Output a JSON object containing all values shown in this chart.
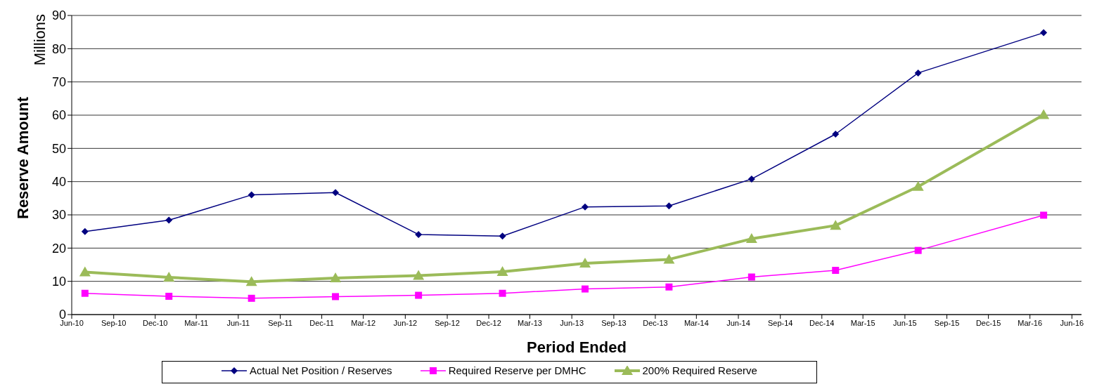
{
  "chart_data": {
    "type": "line",
    "xlabel": "Period Ended",
    "ylabel": "Reserve Amount",
    "annotations": [
      "Millions"
    ],
    "x": [
      "2010-06-30",
      "2010-12-31",
      "2011-06-30",
      "2011-12-31",
      "2012-06-30",
      "2012-12-31",
      "2013-06-30",
      "2013-12-31",
      "2014-06-30",
      "2014-12-31",
      "2015-06-30",
      "2016-03-31"
    ],
    "series": [
      {
        "name": "Actual Net Position / Reserves",
        "color": "#000080",
        "marker": "diamond",
        "values": [
          25,
          28.4,
          36,
          36.7,
          24.1,
          23.6,
          32.4,
          32.7,
          40.8,
          54.3,
          72.7,
          84.8
        ]
      },
      {
        "name": "Required Reserve per DMHC",
        "color": "#ff00ff",
        "marker": "square",
        "values": [
          6.4,
          5.5,
          4.9,
          5.4,
          5.8,
          6.4,
          7.7,
          8.3,
          11.3,
          13.3,
          19.3,
          29.9
        ]
      },
      {
        "name": "200% Required Reserve",
        "color": "#9bbb59",
        "marker": "triangle",
        "values": [
          12.8,
          11.2,
          9.9,
          11.0,
          11.7,
          12.9,
          15.4,
          16.6,
          22.8,
          26.8,
          38.5,
          60.1
        ]
      }
    ],
    "xlim": [
      "2010-06",
      "2016-06-22"
    ],
    "xticks": [
      {
        "value": "2010-06",
        "label": "Jun-10"
      },
      {
        "value": "2010-09",
        "label": "Sep-10"
      },
      {
        "value": "2010-12",
        "label": "Dec-10"
      },
      {
        "value": "2011-03",
        "label": "Mar-11"
      },
      {
        "value": "2011-06",
        "label": "Jun-11"
      },
      {
        "value": "2011-09",
        "label": "Sep-11"
      },
      {
        "value": "2011-12",
        "label": "Dec-11"
      },
      {
        "value": "2012-03",
        "label": "Mar-12"
      },
      {
        "value": "2012-06",
        "label": "Jun-12"
      },
      {
        "value": "2012-09",
        "label": "Sep-12"
      },
      {
        "value": "2012-12",
        "label": "Dec-12"
      },
      {
        "value": "2013-03",
        "label": "Mar-13"
      },
      {
        "value": "2013-06",
        "label": "Jun-13"
      },
      {
        "value": "2013-09",
        "label": "Sep-13"
      },
      {
        "value": "2013-12",
        "label": "Dec-13"
      },
      {
        "value": "2014-03",
        "label": "Mar-14"
      },
      {
        "value": "2014-06",
        "label": "Jun-14"
      },
      {
        "value": "2014-09",
        "label": "Sep-14"
      },
      {
        "value": "2014-12",
        "label": "Dec-14"
      },
      {
        "value": "2015-03",
        "label": "Mar-15"
      },
      {
        "value": "2015-06",
        "label": "Jun-15"
      },
      {
        "value": "2015-09",
        "label": "Sep-15"
      },
      {
        "value": "2015-12",
        "label": "Dec-15"
      },
      {
        "value": "2016-03",
        "label": "Mar-16"
      },
      {
        "value": "2016-06",
        "label": "Jun-16"
      }
    ],
    "ylim": [
      0,
      90
    ],
    "yticks": [
      0,
      10,
      20,
      30,
      40,
      50,
      60,
      70,
      80,
      90
    ],
    "grid": "y",
    "legend": "bottom"
  }
}
